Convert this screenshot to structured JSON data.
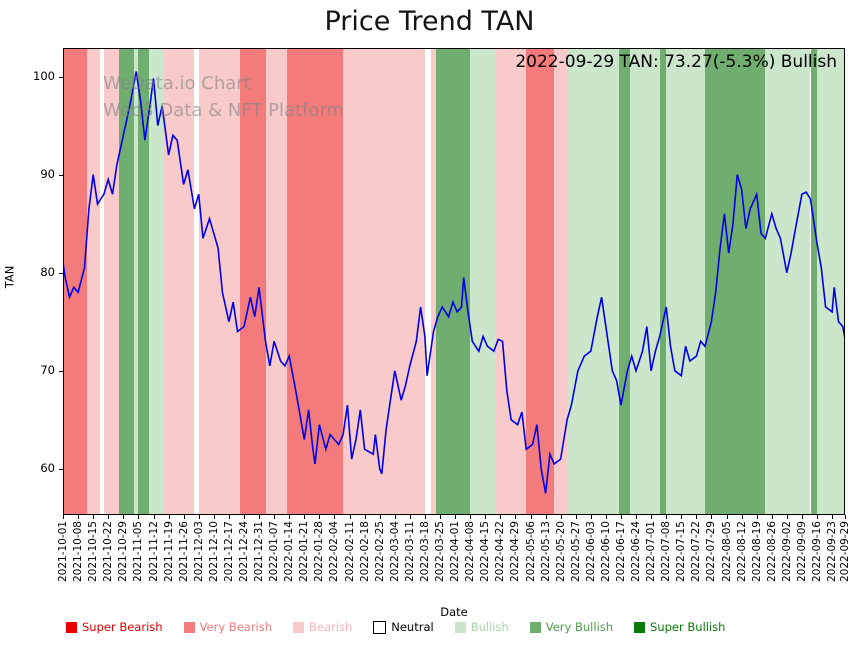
{
  "title": "Price Trend TAN",
  "annotation": "2022-09-29 TAN: 73.27(-5.3%) Bullish",
  "watermark": {
    "line1": "WeData.io Chart",
    "line2": "Web3 Data & NFT Platform"
  },
  "axes": {
    "x_label": "Date",
    "y_label": "TAN",
    "y_ticks": [
      60,
      70,
      80,
      90,
      100
    ],
    "x_ticks": [
      "2021-10-01",
      "2021-10-08",
      "2021-10-15",
      "2021-10-22",
      "2021-10-29",
      "2021-11-05",
      "2021-11-12",
      "2021-11-19",
      "2021-11-26",
      "2021-12-03",
      "2021-12-10",
      "2021-12-17",
      "2021-12-24",
      "2021-12-31",
      "2022-01-07",
      "2022-01-14",
      "2022-01-21",
      "2022-01-28",
      "2022-02-04",
      "2022-02-11",
      "2022-02-18",
      "2022-02-25",
      "2022-03-04",
      "2022-03-11",
      "2022-03-18",
      "2022-03-25",
      "2022-04-01",
      "2022-04-08",
      "2022-04-15",
      "2022-04-22",
      "2022-04-29",
      "2022-05-06",
      "2022-05-13",
      "2022-05-20",
      "2022-05-27",
      "2022-06-03",
      "2022-06-10",
      "2022-06-17",
      "2022-06-24",
      "2022-07-01",
      "2022-07-08",
      "2022-07-15",
      "2022-07-22",
      "2022-07-29",
      "2022-08-05",
      "2022-08-12",
      "2022-08-19",
      "2022-08-26",
      "2022-09-02",
      "2022-09-09",
      "2022-09-16",
      "2022-09-23",
      "2022-09-29"
    ]
  },
  "colors": {
    "line": "#0000e8",
    "super_bearish": "#e60000",
    "very_bearish": "#f37b7b",
    "bearish": "#f8caca",
    "neutral": "#ffffff",
    "bullish": "#cbe6cb",
    "very_bullish": "#6fae6f",
    "super_bullish": "#0a7a0a"
  },
  "legend": [
    {
      "label": "Super Bearish",
      "sentiment": "super_bearish",
      "swatch": "#e60000",
      "text_color": "#e60000"
    },
    {
      "label": "Very Bearish",
      "sentiment": "very_bearish",
      "swatch": "#f37b7b",
      "text_color": "#f37b7b"
    },
    {
      "label": "Bearish",
      "sentiment": "bearish",
      "swatch": "#f8caca",
      "text_color": "#f3b6b6"
    },
    {
      "label": "Neutral",
      "sentiment": "neutral",
      "swatch": "#ffffff",
      "text_color": "#000000"
    },
    {
      "label": "Bullish",
      "sentiment": "bullish",
      "swatch": "#cbe6cb",
      "text_color": "#a9d3a9"
    },
    {
      "label": "Very Bullish",
      "sentiment": "very_bullish",
      "swatch": "#6fae6f",
      "text_color": "#4e9a4e"
    },
    {
      "label": "Super Bullish",
      "sentiment": "super_bullish",
      "swatch": "#0a7a0a",
      "text_color": "#0a7a0a"
    }
  ],
  "chart_data": {
    "type": "line",
    "title": "Price Trend TAN",
    "xlabel": "Date",
    "ylabel": "TAN",
    "ylim": [
      55.3,
      102.9
    ],
    "x_start": "2021-10-01",
    "x_end": "2022-09-29",
    "x_days_total": 363,
    "grid": false,
    "legend_position": "bottom",
    "last_point": {
      "date": "2022-09-29",
      "value": 73.27,
      "change_pct": -5.3,
      "signal": "Bullish"
    },
    "series": [
      {
        "name": "TAN",
        "color": "#0000e8",
        "points": [
          [
            0,
            81
          ],
          [
            1,
            79.5
          ],
          [
            3,
            77.5
          ],
          [
            5,
            78.5
          ],
          [
            7,
            78
          ],
          [
            10,
            80.5
          ],
          [
            12,
            86.5
          ],
          [
            14,
            90
          ],
          [
            16,
            87
          ],
          [
            19,
            88
          ],
          [
            21,
            89.5
          ],
          [
            23,
            88
          ],
          [
            25,
            91
          ],
          [
            28,
            94
          ],
          [
            31,
            97
          ],
          [
            34,
            100.5
          ],
          [
            36,
            97.5
          ],
          [
            38,
            93.5
          ],
          [
            40,
            96.5
          ],
          [
            42,
            99.8
          ],
          [
            44,
            95
          ],
          [
            46,
            97
          ],
          [
            49,
            92
          ],
          [
            51,
            94
          ],
          [
            53,
            93.5
          ],
          [
            56,
            89
          ],
          [
            58,
            90.5
          ],
          [
            61,
            86.5
          ],
          [
            63,
            88
          ],
          [
            65,
            83.5
          ],
          [
            68,
            85.5
          ],
          [
            72,
            82.5
          ],
          [
            74,
            78
          ],
          [
            77,
            75
          ],
          [
            79,
            77
          ],
          [
            81,
            74
          ],
          [
            84,
            74.5
          ],
          [
            87,
            77.5
          ],
          [
            89,
            75.5
          ],
          [
            91,
            78.5
          ],
          [
            94,
            73
          ],
          [
            96,
            70.5
          ],
          [
            98,
            73
          ],
          [
            101,
            71
          ],
          [
            103,
            70.5
          ],
          [
            105,
            71.5
          ],
          [
            108,
            68
          ],
          [
            110,
            65.5
          ],
          [
            112,
            63
          ],
          [
            114,
            66
          ],
          [
            116,
            62
          ],
          [
            117,
            60.5
          ],
          [
            119,
            64.5
          ],
          [
            122,
            62
          ],
          [
            124,
            63.5
          ],
          [
            126,
            63
          ],
          [
            128,
            62.5
          ],
          [
            130,
            63.5
          ],
          [
            132,
            66.5
          ],
          [
            134,
            61
          ],
          [
            136,
            63
          ],
          [
            138,
            66
          ],
          [
            140,
            62
          ],
          [
            144,
            61.5
          ],
          [
            145,
            63.5
          ],
          [
            147,
            60
          ],
          [
            148,
            59.5
          ],
          [
            150,
            64
          ],
          [
            152,
            67
          ],
          [
            154,
            70
          ],
          [
            157,
            67
          ],
          [
            159,
            68.5
          ],
          [
            161,
            70.5
          ],
          [
            164,
            73
          ],
          [
            166,
            76.5
          ],
          [
            168,
            73.5
          ],
          [
            169,
            69.5
          ],
          [
            172,
            74
          ],
          [
            174,
            75.5
          ],
          [
            176,
            76.5
          ],
          [
            179,
            75.5
          ],
          [
            181,
            77
          ],
          [
            183,
            76
          ],
          [
            185,
            76.5
          ],
          [
            186,
            79.5
          ],
          [
            188,
            76
          ],
          [
            190,
            73
          ],
          [
            193,
            72
          ],
          [
            195,
            73.5
          ],
          [
            197,
            72.5
          ],
          [
            200,
            72
          ],
          [
            202,
            73.2
          ],
          [
            204,
            73
          ],
          [
            206,
            68
          ],
          [
            208,
            65
          ],
          [
            211,
            64.5
          ],
          [
            213,
            65.8
          ],
          [
            215,
            62
          ],
          [
            218,
            62.5
          ],
          [
            220,
            64.5
          ],
          [
            222,
            60
          ],
          [
            224,
            57.5
          ],
          [
            226,
            61.5
          ],
          [
            228,
            60.5
          ],
          [
            231,
            61
          ],
          [
            234,
            65
          ],
          [
            236,
            66.5
          ],
          [
            239,
            70
          ],
          [
            242,
            71.5
          ],
          [
            245,
            72
          ],
          [
            248,
            75.5
          ],
          [
            250,
            77.5
          ],
          [
            253,
            73
          ],
          [
            255,
            70
          ],
          [
            257,
            69
          ],
          [
            259,
            66.5
          ],
          [
            262,
            70
          ],
          [
            264,
            71.5
          ],
          [
            266,
            70
          ],
          [
            269,
            72
          ],
          [
            271,
            74.5
          ],
          [
            273,
            70
          ],
          [
            275,
            72
          ],
          [
            277,
            73.5
          ],
          [
            280,
            76.5
          ],
          [
            282,
            72.5
          ],
          [
            284,
            70
          ],
          [
            287,
            69.5
          ],
          [
            289,
            72.5
          ],
          [
            291,
            71
          ],
          [
            294,
            71.5
          ],
          [
            296,
            73
          ],
          [
            298,
            72.5
          ],
          [
            301,
            75
          ],
          [
            303,
            78
          ],
          [
            305,
            82.5
          ],
          [
            307,
            86
          ],
          [
            309,
            82
          ],
          [
            311,
            85
          ],
          [
            313,
            90
          ],
          [
            315,
            88.5
          ],
          [
            317,
            84.5
          ],
          [
            319,
            86.5
          ],
          [
            322,
            88
          ],
          [
            324,
            84
          ],
          [
            326,
            83.5
          ],
          [
            329,
            86
          ],
          [
            331,
            84.5
          ],
          [
            333,
            83.5
          ],
          [
            336,
            80
          ],
          [
            338,
            82
          ],
          [
            340,
            84.5
          ],
          [
            343,
            88
          ],
          [
            345,
            88.2
          ],
          [
            347,
            87.5
          ],
          [
            350,
            83
          ],
          [
            352,
            80.5
          ],
          [
            354,
            76.5
          ],
          [
            357,
            76
          ],
          [
            358,
            78.5
          ],
          [
            360,
            75
          ],
          [
            362,
            74.5
          ],
          [
            363,
            73.27
          ]
        ]
      }
    ],
    "background_bands": [
      {
        "start": "2021-10-01",
        "end": "2021-10-12",
        "sentiment": "very_bearish"
      },
      {
        "start": "2021-10-12",
        "end": "2021-10-18",
        "sentiment": "bearish"
      },
      {
        "start": "2021-10-18",
        "end": "2021-10-20",
        "sentiment": "neutral"
      },
      {
        "start": "2021-10-20",
        "end": "2021-10-27",
        "sentiment": "bearish"
      },
      {
        "start": "2021-10-27",
        "end": "2021-11-03",
        "sentiment": "very_bullish"
      },
      {
        "start": "2021-11-03",
        "end": "2021-11-05",
        "sentiment": "bullish"
      },
      {
        "start": "2021-11-05",
        "end": "2021-11-10",
        "sentiment": "very_bullish"
      },
      {
        "start": "2021-11-10",
        "end": "2021-11-17",
        "sentiment": "bullish"
      },
      {
        "start": "2021-11-17",
        "end": "2021-12-01",
        "sentiment": "bearish"
      },
      {
        "start": "2021-12-01",
        "end": "2021-12-03",
        "sentiment": "neutral"
      },
      {
        "start": "2021-12-03",
        "end": "2021-12-22",
        "sentiment": "bearish"
      },
      {
        "start": "2021-12-22",
        "end": "2022-01-03",
        "sentiment": "very_bearish"
      },
      {
        "start": "2022-01-03",
        "end": "2022-01-13",
        "sentiment": "bearish"
      },
      {
        "start": "2022-01-13",
        "end": "2022-02-08",
        "sentiment": "very_bearish"
      },
      {
        "start": "2022-02-08",
        "end": "2022-03-18",
        "sentiment": "bearish"
      },
      {
        "start": "2022-03-18",
        "end": "2022-03-21",
        "sentiment": "neutral"
      },
      {
        "start": "2022-03-21",
        "end": "2022-03-23",
        "sentiment": "bearish"
      },
      {
        "start": "2022-03-23",
        "end": "2022-04-08",
        "sentiment": "very_bullish"
      },
      {
        "start": "2022-04-08",
        "end": "2022-04-20",
        "sentiment": "bullish"
      },
      {
        "start": "2022-04-20",
        "end": "2022-05-04",
        "sentiment": "bearish"
      },
      {
        "start": "2022-05-04",
        "end": "2022-05-17",
        "sentiment": "very_bearish"
      },
      {
        "start": "2022-05-17",
        "end": "2022-05-23",
        "sentiment": "bearish"
      },
      {
        "start": "2022-05-23",
        "end": "2022-06-16",
        "sentiment": "bullish"
      },
      {
        "start": "2022-06-16",
        "end": "2022-06-21",
        "sentiment": "very_bullish"
      },
      {
        "start": "2022-06-21",
        "end": "2022-07-05",
        "sentiment": "bullish"
      },
      {
        "start": "2022-07-05",
        "end": "2022-07-08",
        "sentiment": "very_bullish"
      },
      {
        "start": "2022-07-08",
        "end": "2022-07-26",
        "sentiment": "bullish"
      },
      {
        "start": "2022-07-26",
        "end": "2022-08-23",
        "sentiment": "very_bullish"
      },
      {
        "start": "2022-08-23",
        "end": "2022-09-13",
        "sentiment": "bullish"
      },
      {
        "start": "2022-09-13",
        "end": "2022-09-16",
        "sentiment": "very_bullish"
      },
      {
        "start": "2022-09-16",
        "end": "2022-09-29",
        "sentiment": "bullish"
      }
    ]
  }
}
